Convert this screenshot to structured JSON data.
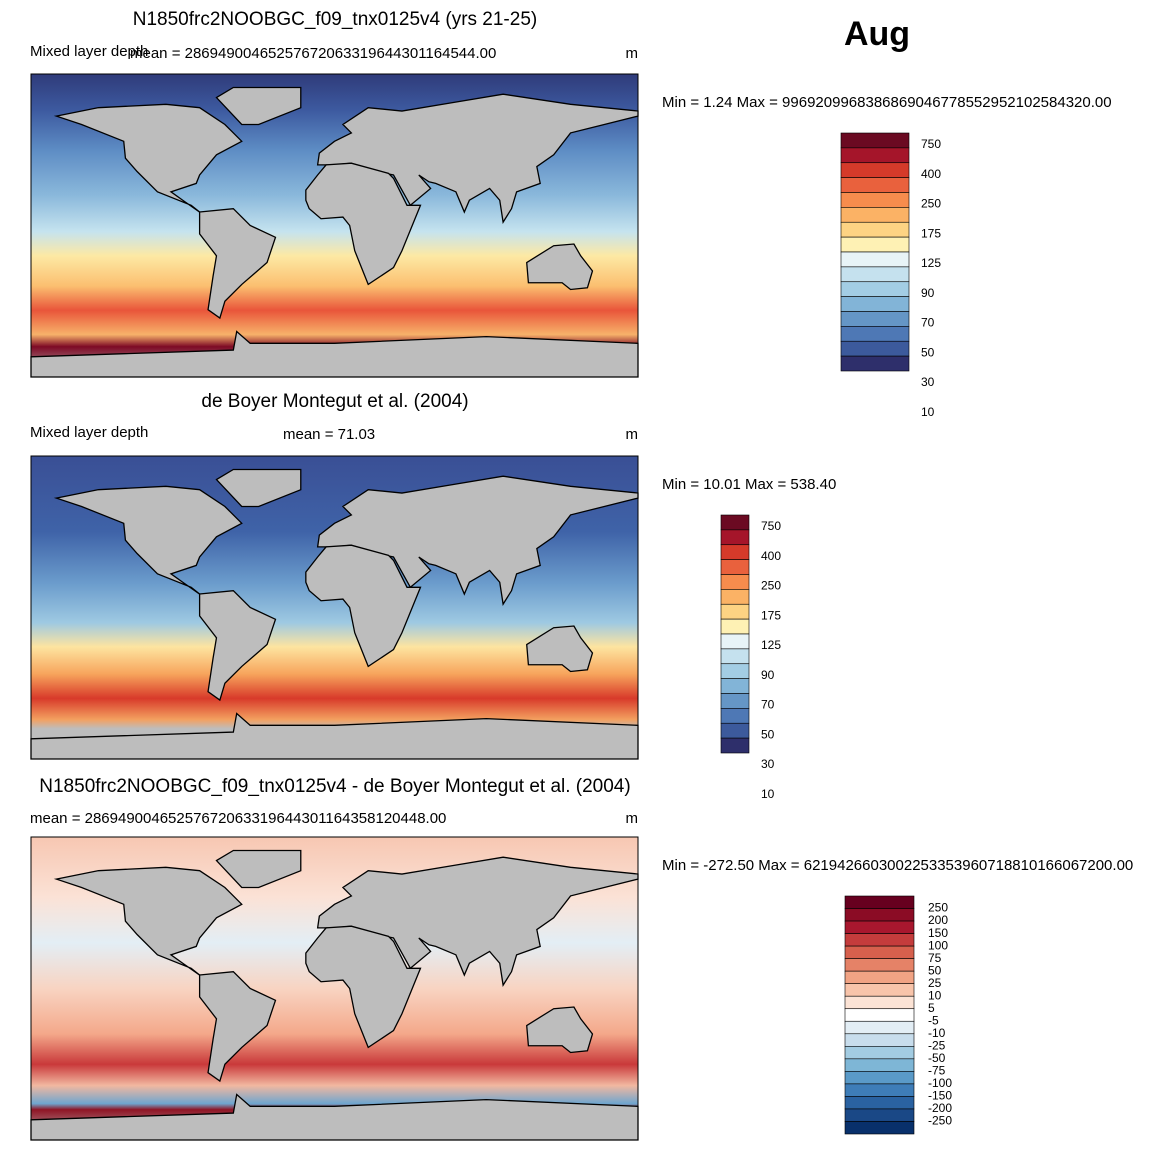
{
  "month": "Aug",
  "panels": [
    {
      "title": "N1850frc2NOOBGC_f09_tnx0125v4 (yrs 21-25)",
      "left_label": "Mixed layer depth",
      "mean": "mean = 28694900465257672063319644301164544.00",
      "units": "m",
      "stats": "Min =   1.24 Max = 9969209968386869046778552952102584320.00",
      "colorbar": [
        "750",
        "400",
        "250",
        "175",
        "125",
        "90",
        "70",
        "50",
        "30",
        "10"
      ]
    },
    {
      "title": "de Boyer Montegut et al. (2004)",
      "left_label": "Mixed layer depth",
      "mean": "mean =  71.03",
      "units": "m",
      "stats": "Min =  10.01 Max = 538.40",
      "colorbar": [
        "750",
        "400",
        "250",
        "175",
        "125",
        "90",
        "70",
        "50",
        "30",
        "10"
      ]
    },
    {
      "title": "N1850frc2NOOBGC_f09_tnx0125v4 - de Boyer Montegut et al. (2004)",
      "mean": "mean = 28694900465257672063319644301164358120448.00",
      "units": "m",
      "stats": "Min = -272.50 Max = 6219426603002253353960718810166067200.00",
      "colorbar": [
        "250",
        "200",
        "150",
        "100",
        "75",
        "50",
        "25",
        "10",
        "5",
        "-5",
        "-10",
        "-25",
        "-50",
        "-75",
        "-100",
        "-150",
        "-200",
        "-250"
      ]
    }
  ]
}
